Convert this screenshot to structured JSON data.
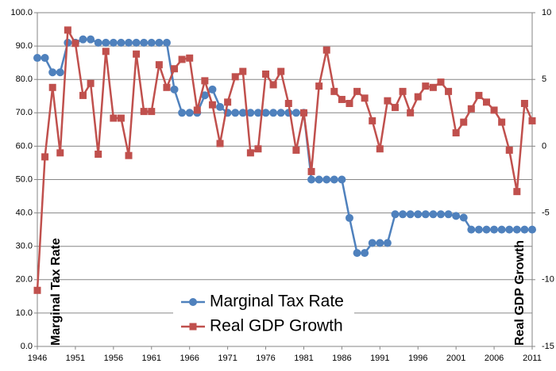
{
  "chart_data": {
    "type": "line",
    "ylabel": "Marginal Tax Rate",
    "y2label": "Real GDP Growth",
    "x": [
      1946,
      1947,
      1948,
      1949,
      1950,
      1951,
      1952,
      1953,
      1954,
      1955,
      1956,
      1957,
      1958,
      1959,
      1960,
      1961,
      1962,
      1963,
      1964,
      1965,
      1966,
      1967,
      1968,
      1969,
      1970,
      1971,
      1972,
      1973,
      1974,
      1975,
      1976,
      1977,
      1978,
      1979,
      1980,
      1981,
      1982,
      1983,
      1984,
      1985,
      1986,
      1987,
      1988,
      1989,
      1990,
      1991,
      1992,
      1993,
      1994,
      1995,
      1996,
      1997,
      1998,
      1999,
      2000,
      2001,
      2002,
      2003,
      2004,
      2005,
      2006,
      2007,
      2008,
      2009,
      2010,
      2011
    ],
    "xlim": [
      1946,
      2011
    ],
    "xticks": [
      1946,
      1951,
      1956,
      1961,
      1966,
      1971,
      1976,
      1981,
      1986,
      1991,
      1996,
      2001,
      2006,
      2011
    ],
    "ylim": [
      0,
      100
    ],
    "yticks": [
      {
        "value": 0,
        "label": "0.0"
      },
      {
        "value": 10,
        "label": "10.0"
      },
      {
        "value": 20,
        "label": "20.0"
      },
      {
        "value": 30,
        "label": "30.0"
      },
      {
        "value": 40,
        "label": "40.0"
      },
      {
        "value": 50,
        "label": "50.0"
      },
      {
        "value": 60,
        "label": "60.0"
      },
      {
        "value": 70,
        "label": "70.0"
      },
      {
        "value": 80,
        "label": "80.0"
      },
      {
        "value": 90,
        "label": "90.0"
      },
      {
        "value": 100,
        "label": "100.0"
      }
    ],
    "y2lim": [
      -15,
      10
    ],
    "y2ticks": [
      -15,
      -10,
      -5,
      0,
      5,
      10
    ],
    "grid": true,
    "series": [
      {
        "name": "Marginal Tax Rate",
        "color": "#4f81bd",
        "marker": "circle",
        "values": [
          86.45,
          86.45,
          82.13,
          82.13,
          91,
          91,
          92,
          92,
          91,
          91,
          91,
          91,
          91,
          91,
          91,
          91,
          91,
          91,
          77,
          70,
          70,
          70,
          75.25,
          77,
          71.75,
          70,
          70,
          70,
          70,
          70,
          70,
          70,
          70,
          70,
          70,
          70,
          50,
          50,
          50,
          50,
          50,
          38.5,
          28,
          28,
          31,
          31,
          31,
          39.6,
          39.6,
          39.6,
          39.6,
          39.6,
          39.6,
          39.6,
          39.6,
          39.1,
          38.6,
          35,
          35,
          35,
          35,
          35,
          35,
          35,
          35,
          35
        ]
      },
      {
        "name": "Real GDP Growth",
        "color": "#c0504d",
        "marker": "square",
        "axis": "y2",
        "values": [
          -10.8,
          -0.8,
          4.4,
          -0.5,
          8.7,
          7.7,
          3.8,
          4.7,
          -0.6,
          7.1,
          2.1,
          2.1,
          -0.7,
          6.9,
          2.6,
          2.6,
          6.1,
          4.4,
          5.8,
          6.5,
          6.6,
          2.7,
          4.9,
          3.1,
          0.2,
          3.3,
          5.2,
          5.6,
          -0.5,
          -0.2,
          5.4,
          4.6,
          5.6,
          3.2,
          -0.3,
          2.5,
          -1.9,
          4.5,
          7.2,
          4.1,
          3.5,
          3.2,
          4.1,
          3.6,
          1.9,
          -0.2,
          3.4,
          2.9,
          4.1,
          2.5,
          3.7,
          4.5,
          4.4,
          4.8,
          4.1,
          1.0,
          1.8,
          2.8,
          3.8,
          3.3,
          2.7,
          1.8,
          -0.3,
          -3.4,
          3.2,
          1.9
        ]
      }
    ]
  }
}
